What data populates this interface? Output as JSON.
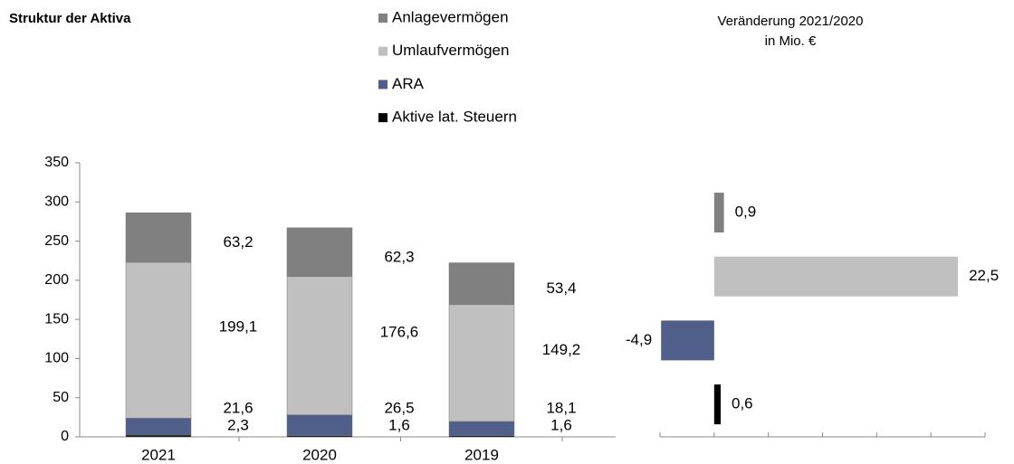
{
  "chart_data": [
    {
      "type": "stacked-bar",
      "title": "Struktur der Aktiva",
      "categories": [
        "2021",
        "2020",
        "2019"
      ],
      "series": [
        {
          "name": "Aktive lat. Steuern",
          "color": "#000000",
          "values": [
            2.3,
            1.6,
            1.6
          ],
          "value_labels": [
            "2,3",
            "1,6",
            "1,6"
          ]
        },
        {
          "name": "ARA",
          "color": "#4f5f8a",
          "values": [
            21.6,
            26.5,
            18.1
          ],
          "value_labels": [
            "21,6",
            "26,5",
            "18,1"
          ]
        },
        {
          "name": "Umlaufvermögen",
          "color": "#c0c0c0",
          "values": [
            199.1,
            176.6,
            149.2
          ],
          "value_labels": [
            "199,1",
            "176,6",
            "149,2"
          ]
        },
        {
          "name": "Anlagevermögen",
          "color": "#808080",
          "values": [
            63.2,
            62.3,
            53.4
          ],
          "value_labels": [
            "63,2",
            "62,3",
            "53,4"
          ]
        }
      ],
      "ylim": [
        0,
        350
      ],
      "yticks": [
        0,
        50,
        100,
        150,
        200,
        250,
        300,
        350
      ]
    },
    {
      "type": "hbar",
      "title": [
        "Veränderung 2021/2020",
        "in Mio. €"
      ],
      "values": [
        0.9,
        22.5,
        -4.9,
        0.6
      ],
      "value_labels": [
        "0,9",
        "22,5",
        "-4,9",
        "0,6"
      ],
      "colors": [
        "#808080",
        "#c0c0c0",
        "#4f5f8a",
        "#000000"
      ],
      "xlim": [
        -5,
        25
      ],
      "xticks": [
        -5,
        0,
        5,
        10,
        15,
        20,
        25
      ]
    }
  ]
}
